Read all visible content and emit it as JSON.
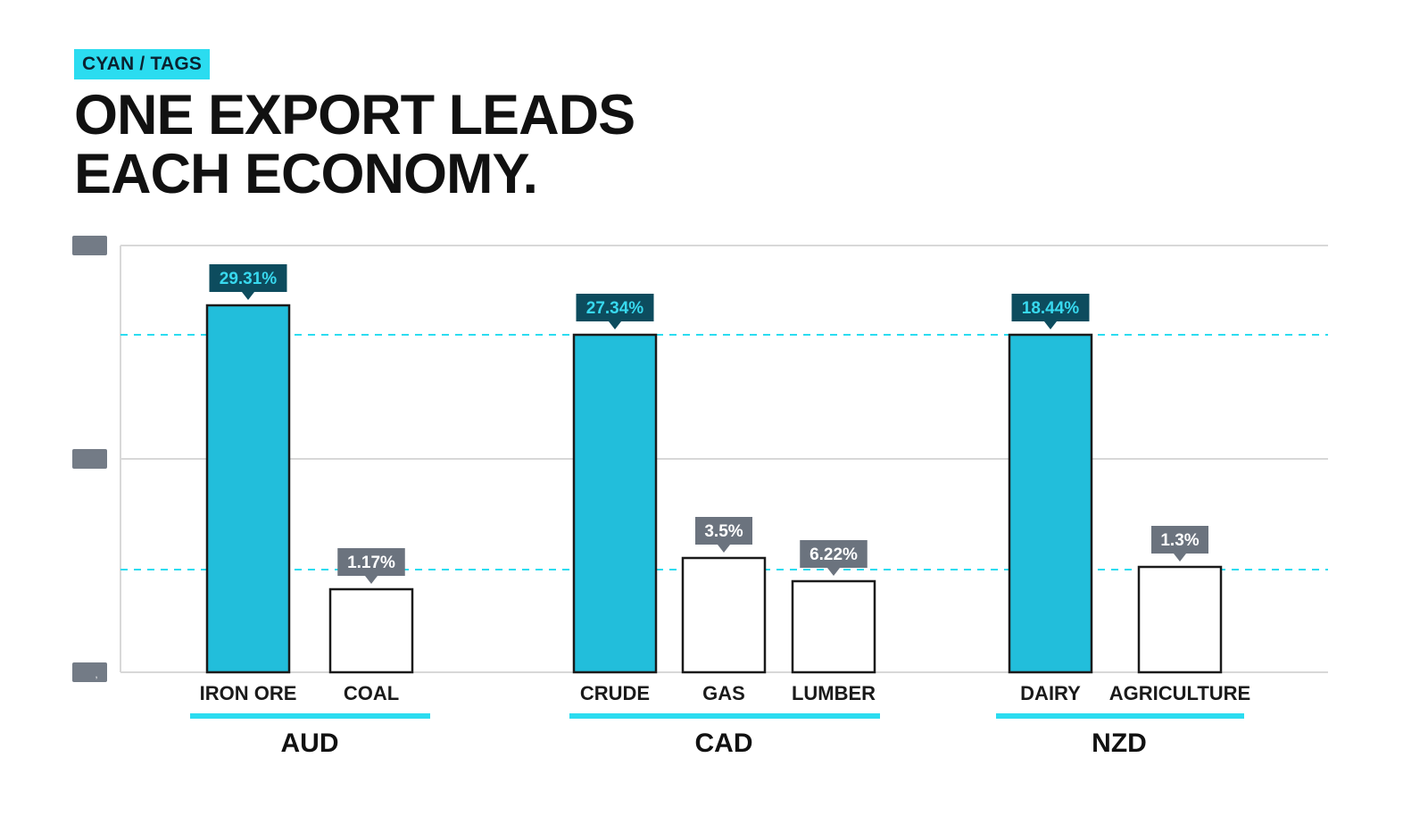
{
  "tag": "CYAN / TAGS",
  "title_lines": [
    "ONE EXPORT LEADS",
    "EACH ECONOMY."
  ],
  "colors": {
    "accent": "#22bedb",
    "accent_bright": "#2bdcf0",
    "lead_label_bg": "#0d4c5e",
    "lead_label_text": "#38d9ef",
    "minor_label_bg": "#6b737e",
    "minor_label_text": "#ffffff",
    "grid": "#d8d8d8",
    "tick_box": "#737b86",
    "ink": "#111111"
  },
  "chart_data": {
    "type": "bar",
    "title": "ONE EXPORT LEADS EACH ECONOMY.",
    "xlabel": "",
    "ylabel": "",
    "grid": true,
    "y_tick_labels": [
      "",
      "",
      ","
    ],
    "groups": [
      {
        "name": "AUD",
        "bars": [
          {
            "category": "IRON ORE",
            "value": 29.31,
            "label": "29.31%",
            "lead": true
          },
          {
            "category": "COAL",
            "value": 1.17,
            "label": "1.17%",
            "lead": false
          }
        ]
      },
      {
        "name": "CAD",
        "bars": [
          {
            "category": "CRUDE",
            "value": 27.34,
            "label": "27.34%",
            "lead": true
          },
          {
            "category": "GAS",
            "value": 3.5,
            "label": "3.5%",
            "lead": false
          },
          {
            "category": "LUMBER",
            "value": 6.22,
            "label": "6.22%",
            "lead": false
          }
        ]
      },
      {
        "name": "NZD",
        "bars": [
          {
            "category": "DAIRY",
            "value": 18.44,
            "label": "18.44%",
            "lead": true
          },
          {
            "category": "AGRICULTURE",
            "value": 1.3,
            "label": "1.3%",
            "lead": false
          }
        ]
      }
    ]
  }
}
